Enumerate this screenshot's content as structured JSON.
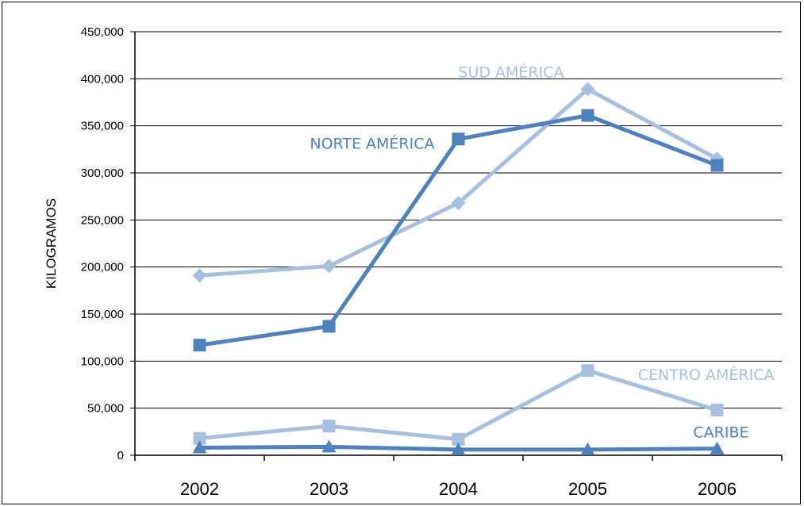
{
  "chart_data": {
    "type": "line",
    "title": "",
    "xlabel": "",
    "ylabel": "KILOGRAMOS",
    "categories": [
      "2002",
      "2003",
      "2004",
      "2005",
      "2006"
    ],
    "ylim": [
      0,
      450000
    ],
    "yticks": [
      0,
      50000,
      100000,
      150000,
      200000,
      250000,
      300000,
      350000,
      400000,
      450000
    ],
    "ytick_labels": [
      "0",
      "50,000",
      "100,000",
      "150,000",
      "200,000",
      "250,000",
      "300,000",
      "350,000",
      "400,000",
      "450,000"
    ],
    "grid": true,
    "legend": "inline labels",
    "series": [
      {
        "name": "SUD AMÉRICA",
        "color": "#a7c0e0",
        "marker": "diamond",
        "values": [
          191000,
          201000,
          268000,
          389000,
          315000
        ]
      },
      {
        "name": "NORTE AMÉRICA",
        "color": "#4f81bd",
        "marker": "square",
        "values": [
          117000,
          137000,
          336000,
          361000,
          308000
        ]
      },
      {
        "name": "CENTRO AMÉRICA",
        "color": "#a7c0e0",
        "marker": "square",
        "values": [
          18000,
          31000,
          17000,
          90000,
          48000
        ]
      },
      {
        "name": "CARIBE",
        "color": "#4f81bd",
        "marker": "triangle",
        "values": [
          8000,
          9000,
          6000,
          6000,
          7000
        ]
      }
    ]
  }
}
